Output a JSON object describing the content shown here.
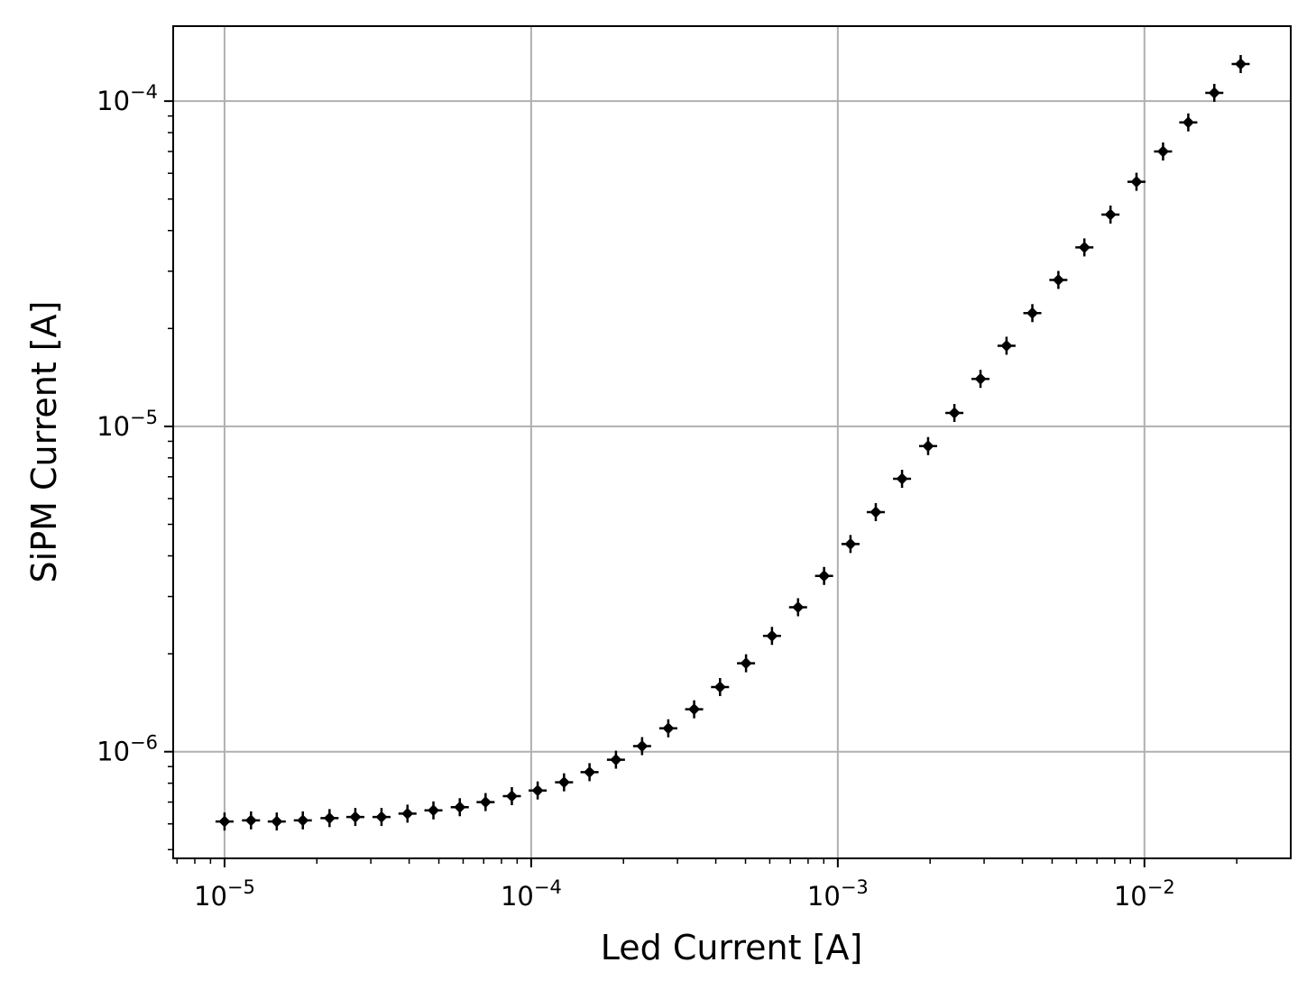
{
  "chart_data": {
    "type": "scatter",
    "xlabel": "Led Current [A]",
    "ylabel": "SiPM Current [A]",
    "xscale": "log",
    "yscale": "log",
    "xlim": [
      6.8e-06,
      0.03
    ],
    "ylim": [
      4.7e-07,
      0.00017
    ],
    "grid": true,
    "marker_color": "#000000",
    "grid_color": "#b0b0b0",
    "x_major_ticks": [
      {
        "value": 1e-05,
        "base": "10",
        "exp": "−5"
      },
      {
        "value": 0.0001,
        "base": "10",
        "exp": "−4"
      },
      {
        "value": 0.001,
        "base": "10",
        "exp": "−3"
      },
      {
        "value": 0.01,
        "base": "10",
        "exp": "−2"
      }
    ],
    "y_major_ticks": [
      {
        "value": 1e-06,
        "base": "10",
        "exp": "−6"
      },
      {
        "value": 1e-05,
        "base": "10",
        "exp": "−5"
      },
      {
        "value": 0.0001,
        "base": "10",
        "exp": "−4"
      }
    ],
    "series": [
      {
        "x": [
          1e-05,
          1.22e-05,
          1.48e-05,
          1.8e-05,
          2.2e-05,
          2.67e-05,
          3.25e-05,
          3.95e-05,
          4.8e-05,
          5.85e-05,
          7.1e-05,
          8.65e-05,
          0.000105,
          0.000128,
          0.000155,
          0.000189,
          0.00023,
          0.00028,
          0.00034,
          0.000413,
          0.000502,
          0.00061,
          0.000742,
          0.000902,
          0.0011,
          0.00133,
          0.00162,
          0.00197,
          0.0024,
          0.00292,
          0.00355,
          0.00431,
          0.00524,
          0.00637,
          0.00775,
          0.00942,
          0.0115,
          0.0139,
          0.0169,
          0.0206
        ],
        "y": [
          6.1e-07,
          6.15e-07,
          6.1e-07,
          6.15e-07,
          6.25e-07,
          6.3e-07,
          6.3e-07,
          6.45e-07,
          6.6e-07,
          6.75e-07,
          7e-07,
          7.3e-07,
          7.6e-07,
          8.05e-07,
          8.65e-07,
          9.45e-07,
          1.04e-06,
          1.18e-06,
          1.35e-06,
          1.58e-06,
          1.87e-06,
          2.27e-06,
          2.78e-06,
          3.47e-06,
          4.35e-06,
          5.45e-06,
          6.9e-06,
          8.7e-06,
          1.1e-05,
          1.4e-05,
          1.77e-05,
          2.23e-05,
          2.82e-05,
          3.55e-05,
          4.48e-05,
          5.65e-05,
          7e-05,
          8.6e-05,
          0.000106,
          0.00013
        ]
      }
    ]
  }
}
